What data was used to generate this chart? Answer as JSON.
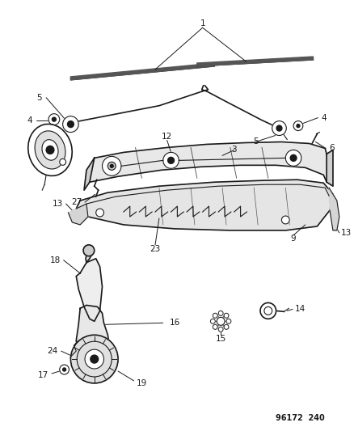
{
  "bg_color": "#ffffff",
  "fig_width": 4.38,
  "fig_height": 5.33,
  "dpi": 100,
  "line_color": "#1a1a1a",
  "label_fontsize": 7.5,
  "ref_text": "96172  240",
  "ref_fontsize": 7
}
